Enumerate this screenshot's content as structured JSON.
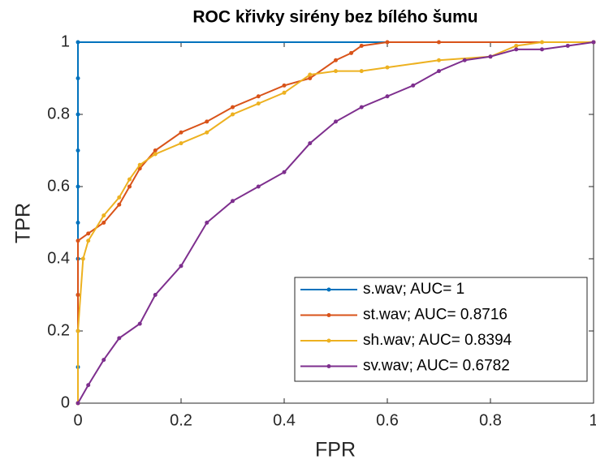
{
  "chart_data": {
    "type": "line",
    "title": "ROC křivky sirény bez bílého šumu",
    "x_label": "FPR",
    "y_label": "TPR",
    "xlim": [
      0,
      1
    ],
    "ylim": [
      0,
      1
    ],
    "xticks": [
      0,
      0.2,
      0.4,
      0.6,
      0.8,
      1
    ],
    "yticks": [
      0,
      0.2,
      0.4,
      0.6,
      0.8,
      1
    ],
    "grid": false,
    "legend_position": "lower right",
    "series": [
      {
        "name": "s.wav; AUC= 1",
        "color": "#0072BD",
        "x": [
          0,
          0,
          0,
          0,
          0,
          0,
          0,
          0,
          0,
          0,
          0,
          1
        ],
        "values": [
          0,
          0.1,
          0.2,
          0.3,
          0.4,
          0.5,
          0.6,
          0.7,
          0.8,
          0.9,
          1,
          1
        ]
      },
      {
        "name": "st.wav; AUC= 0.8716",
        "color": "#D95319",
        "x": [
          0,
          0,
          0,
          0.02,
          0.05,
          0.08,
          0.1,
          0.12,
          0.15,
          0.2,
          0.25,
          0.3,
          0.35,
          0.4,
          0.45,
          0.5,
          0.53,
          0.55,
          0.6,
          0.7,
          1
        ],
        "values": [
          0,
          0.3,
          0.45,
          0.47,
          0.5,
          0.55,
          0.6,
          0.65,
          0.7,
          0.75,
          0.78,
          0.82,
          0.85,
          0.88,
          0.9,
          0.95,
          0.97,
          0.99,
          1,
          1,
          1
        ]
      },
      {
        "name": "sh.wav; AUC= 0.8394",
        "color": "#EDB120",
        "x": [
          0,
          0,
          0.01,
          0.02,
          0.05,
          0.08,
          0.1,
          0.12,
          0.15,
          0.2,
          0.25,
          0.3,
          0.35,
          0.4,
          0.45,
          0.5,
          0.55,
          0.6,
          0.7,
          0.8,
          0.85,
          0.9,
          1
        ],
        "values": [
          0,
          0.2,
          0.4,
          0.45,
          0.52,
          0.57,
          0.62,
          0.66,
          0.69,
          0.72,
          0.75,
          0.8,
          0.83,
          0.86,
          0.91,
          0.92,
          0.92,
          0.93,
          0.95,
          0.96,
          0.99,
          1,
          1
        ]
      },
      {
        "name": "sv.wav; AUC= 0.6782",
        "color": "#7E2F8E",
        "x": [
          0,
          0.02,
          0.05,
          0.08,
          0.12,
          0.15,
          0.2,
          0.25,
          0.3,
          0.35,
          0.4,
          0.45,
          0.5,
          0.55,
          0.6,
          0.65,
          0.7,
          0.75,
          0.8,
          0.85,
          0.9,
          0.95,
          1
        ],
        "values": [
          0,
          0.05,
          0.12,
          0.18,
          0.22,
          0.3,
          0.38,
          0.5,
          0.56,
          0.6,
          0.64,
          0.72,
          0.78,
          0.82,
          0.85,
          0.88,
          0.92,
          0.95,
          0.96,
          0.98,
          0.98,
          0.99,
          1
        ]
      }
    ]
  }
}
